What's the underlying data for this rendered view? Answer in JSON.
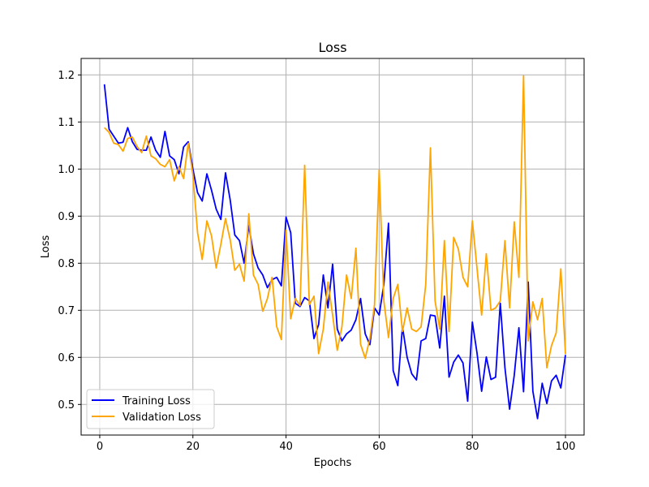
{
  "chart_data": {
    "type": "line",
    "title": "Loss",
    "xlabel": "Epochs",
    "ylabel": "Loss",
    "xlim": [
      -4,
      104
    ],
    "ylim": [
      0.435,
      1.235
    ],
    "xticks": [
      0,
      20,
      40,
      60,
      80,
      100
    ],
    "yticks": [
      0.5,
      0.6,
      0.7,
      0.8,
      0.9,
      1.0,
      1.1,
      1.2
    ],
    "xtick_labels": [
      "0",
      "20",
      "40",
      "60",
      "80",
      "100"
    ],
    "ytick_labels": [
      "0.5",
      "0.6",
      "0.7",
      "0.8",
      "0.9",
      "1.0",
      "1.1",
      "1.2"
    ],
    "grid": true,
    "legend_position": "lower-left",
    "x": [
      1,
      2,
      3,
      4,
      5,
      6,
      7,
      8,
      9,
      10,
      11,
      12,
      13,
      14,
      15,
      16,
      17,
      18,
      19,
      20,
      21,
      22,
      23,
      24,
      25,
      26,
      27,
      28,
      29,
      30,
      31,
      32,
      33,
      34,
      35,
      36,
      37,
      38,
      39,
      40,
      41,
      42,
      43,
      44,
      45,
      46,
      47,
      48,
      49,
      50,
      51,
      52,
      53,
      54,
      55,
      56,
      57,
      58,
      59,
      60,
      61,
      62,
      63,
      64,
      65,
      66,
      67,
      68,
      69,
      70,
      71,
      72,
      73,
      74,
      75,
      76,
      77,
      78,
      79,
      80,
      81,
      82,
      83,
      84,
      85,
      86,
      87,
      88,
      89,
      90,
      91,
      92,
      93,
      94,
      95,
      96,
      97,
      98,
      99,
      100
    ],
    "series": [
      {
        "name": "Training Loss",
        "color": "#0000ff",
        "values": [
          1.18,
          1.085,
          1.07,
          1.055,
          1.057,
          1.088,
          1.058,
          1.042,
          1.04,
          1.04,
          1.068,
          1.04,
          1.025,
          1.08,
          1.028,
          1.02,
          0.99,
          1.047,
          1.058,
          1.0,
          0.95,
          0.932,
          0.99,
          0.955,
          0.915,
          0.893,
          0.992,
          0.935,
          0.86,
          0.848,
          0.8,
          0.88,
          0.82,
          0.79,
          0.775,
          0.748,
          0.765,
          0.77,
          0.752,
          0.898,
          0.865,
          0.715,
          0.708,
          0.727,
          0.72,
          0.64,
          0.67,
          0.775,
          0.705,
          0.798,
          0.66,
          0.635,
          0.65,
          0.658,
          0.68,
          0.725,
          0.65,
          0.627,
          0.705,
          0.69,
          0.755,
          0.885,
          0.572,
          0.54,
          0.665,
          0.6,
          0.565,
          0.552,
          0.635,
          0.64,
          0.69,
          0.688,
          0.62,
          0.73,
          0.558,
          0.59,
          0.605,
          0.588,
          0.507,
          0.675,
          0.61,
          0.528,
          0.601,
          0.553,
          0.558,
          0.715,
          0.578,
          0.49,
          0.562,
          0.663,
          0.527,
          0.76,
          0.528,
          0.47,
          0.545,
          0.502,
          0.55,
          0.562,
          0.535,
          0.605
        ]
      },
      {
        "name": "Validation Loss",
        "color": "#ffa500",
        "values": [
          1.088,
          1.078,
          1.055,
          1.052,
          1.038,
          1.065,
          1.068,
          1.048,
          1.035,
          1.07,
          1.028,
          1.022,
          1.01,
          1.005,
          1.02,
          0.975,
          1.005,
          0.98,
          1.055,
          0.988,
          0.865,
          0.808,
          0.89,
          0.858,
          0.79,
          0.84,
          0.895,
          0.85,
          0.785,
          0.798,
          0.762,
          0.905,
          0.775,
          0.755,
          0.698,
          0.725,
          0.77,
          0.665,
          0.638,
          0.87,
          0.682,
          0.725,
          0.71,
          1.008,
          0.712,
          0.73,
          0.608,
          0.66,
          0.76,
          0.69,
          0.615,
          0.665,
          0.775,
          0.725,
          0.832,
          0.628,
          0.598,
          0.64,
          0.712,
          0.998,
          0.72,
          0.642,
          0.725,
          0.755,
          0.655,
          0.705,
          0.66,
          0.655,
          0.665,
          0.755,
          1.045,
          0.72,
          0.66,
          0.848,
          0.655,
          0.855,
          0.83,
          0.77,
          0.75,
          0.89,
          0.79,
          0.69,
          0.82,
          0.7,
          0.705,
          0.72,
          0.848,
          0.705,
          0.888,
          0.77,
          1.198,
          0.635,
          0.718,
          0.68,
          0.725,
          0.578,
          0.625,
          0.652,
          0.788,
          0.607
        ]
      }
    ]
  }
}
